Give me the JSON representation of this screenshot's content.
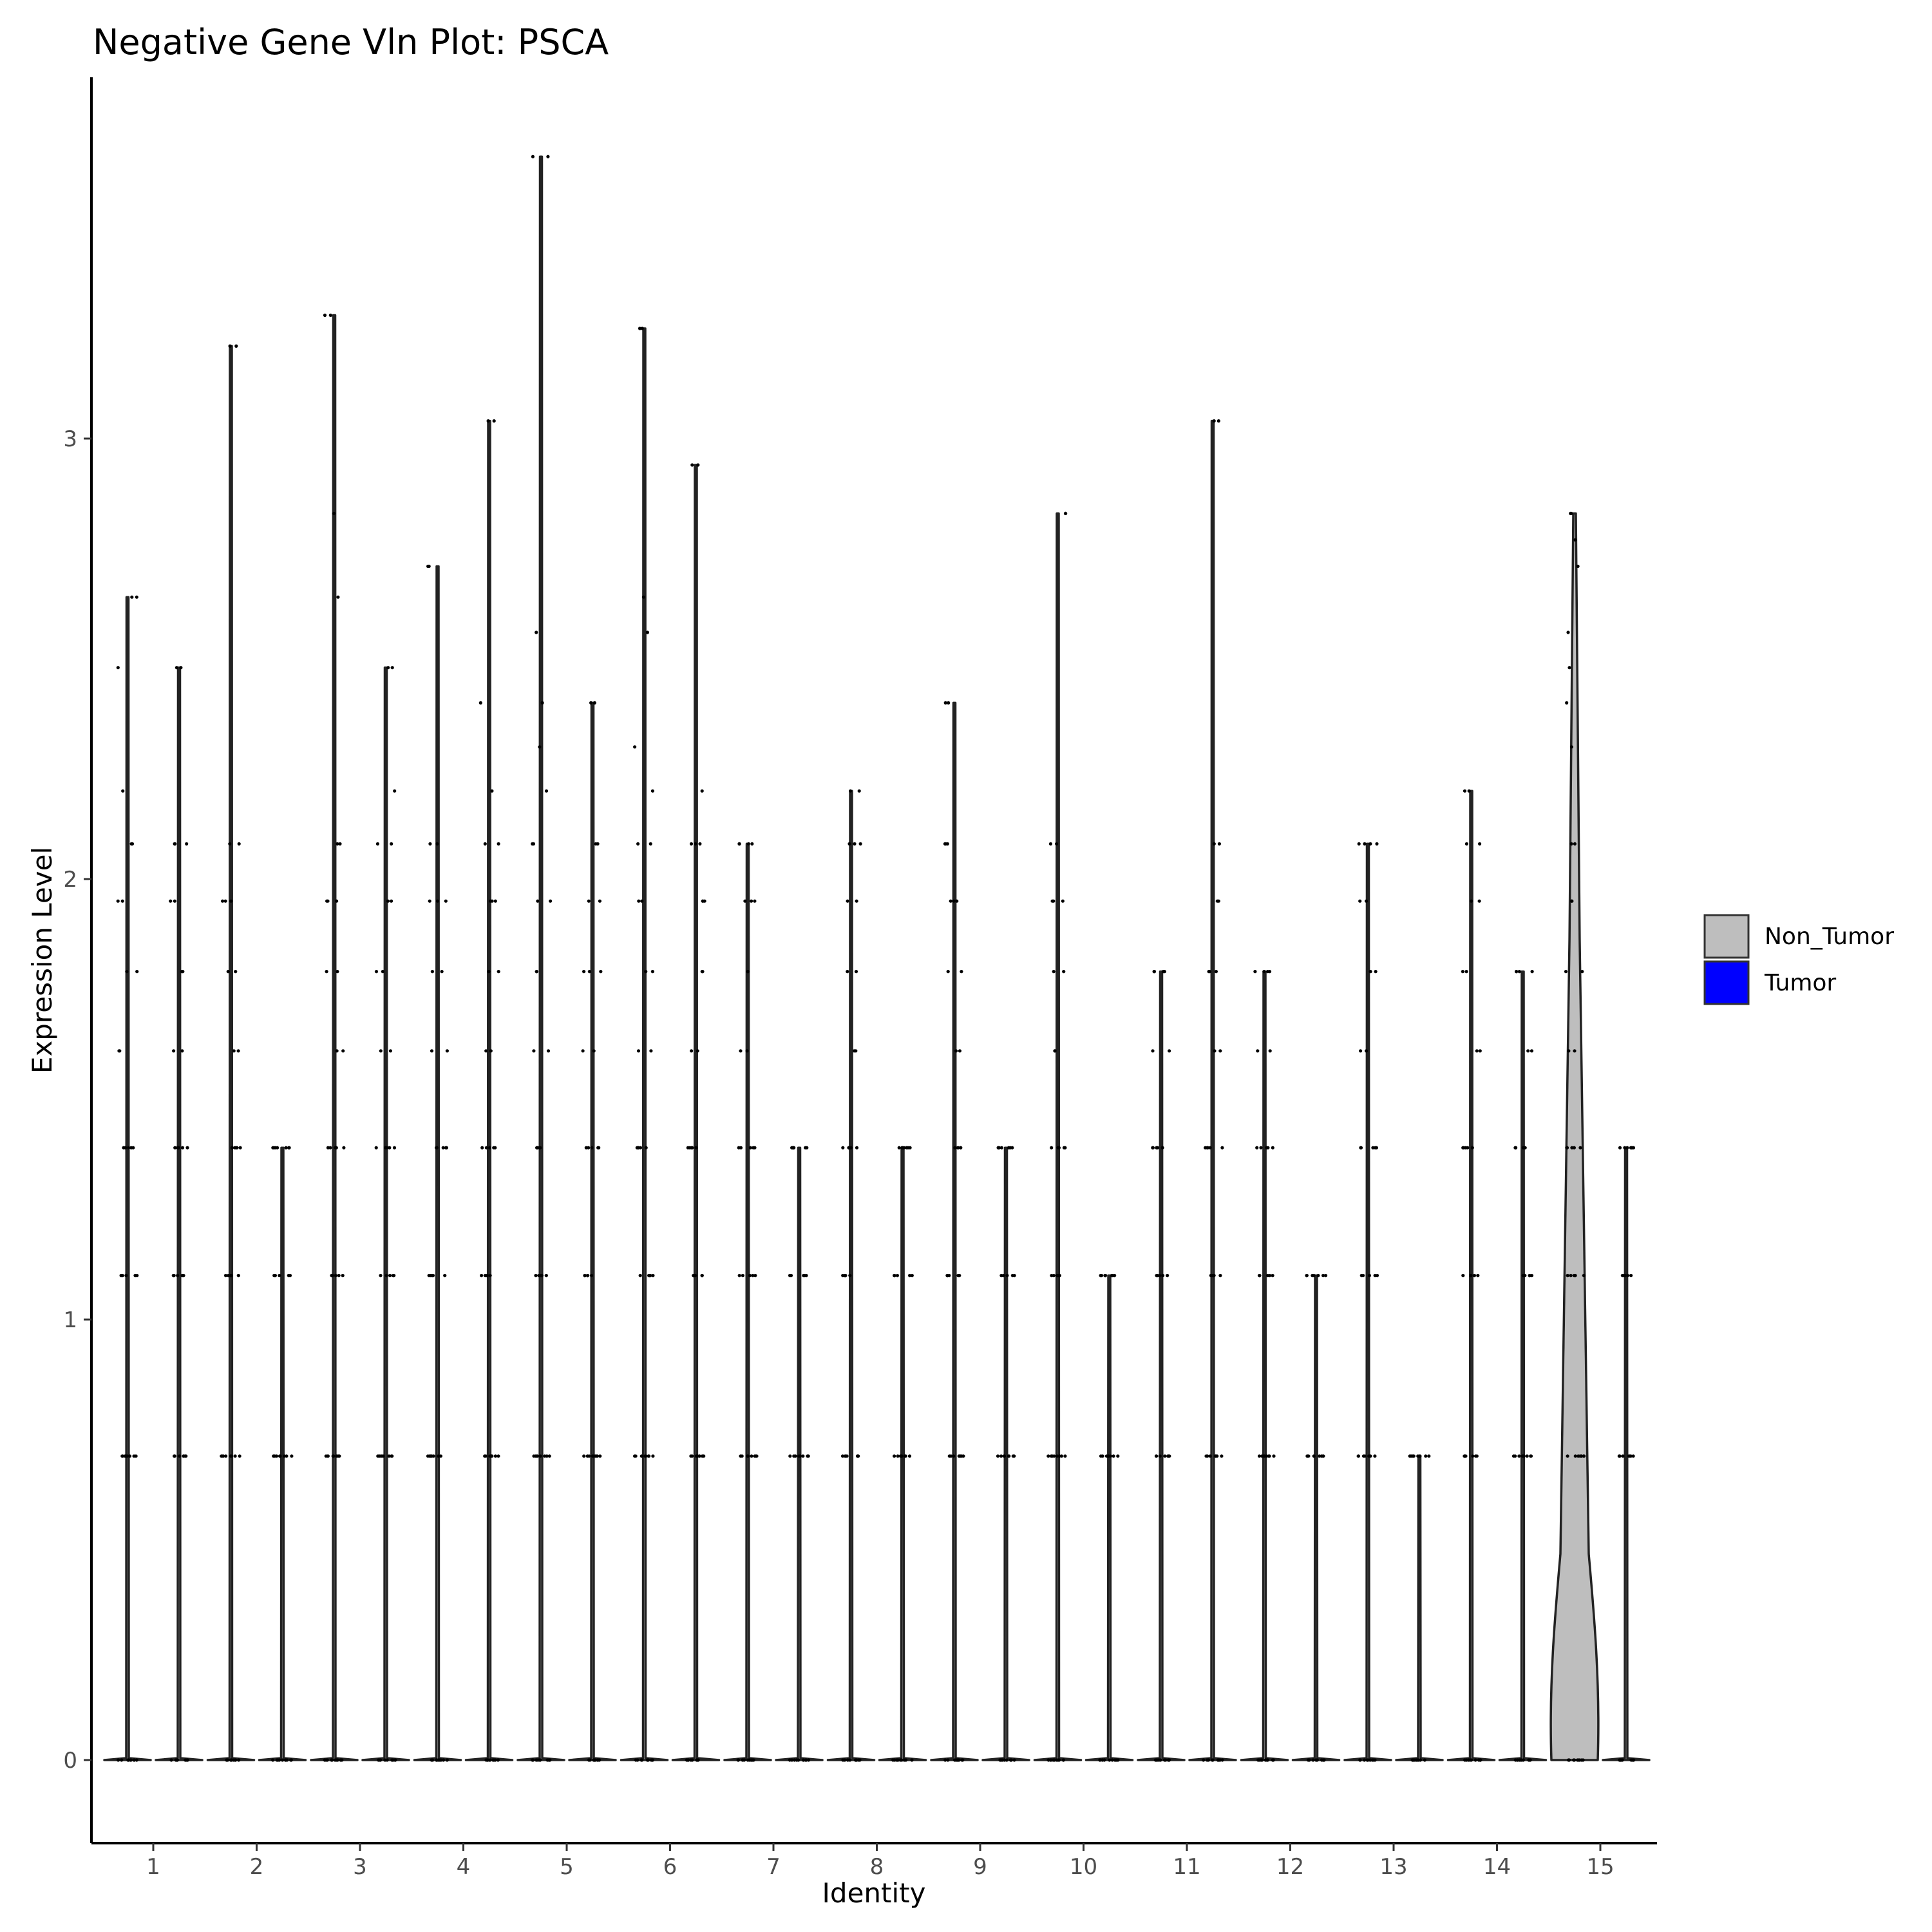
{
  "chart_data": {
    "type": "violin",
    "title": "Negative Gene Vln Plot: PSCA",
    "xlabel": "Identity",
    "ylabel": "Expression Level",
    "categories": [
      "1",
      "2",
      "3",
      "4",
      "5",
      "6",
      "7",
      "8",
      "9",
      "10",
      "11",
      "12",
      "13",
      "14",
      "15"
    ],
    "ylim": [
      -0.18,
      3.7
    ],
    "yticks": [
      0,
      1,
      2,
      3
    ],
    "grid": false,
    "legend": {
      "placement": "right",
      "entries": [
        {
          "name": "Non_Tumor",
          "color": "#BEBEBE"
        },
        {
          "name": "Tumor",
          "color": "#0000FF"
        }
      ]
    },
    "levels": [
      0.69,
      1.1,
      1.39,
      1.61,
      1.79,
      1.95,
      2.08
    ],
    "series": [
      {
        "name": "Non_Tumor",
        "color": "#BEBEBE",
        "max": [
          2.64,
          3.21,
          3.28,
          2.71,
          3.64,
          3.25,
          2.08,
          2.2,
          2.4,
          2.83,
          1.79,
          1.79,
          2.08,
          2.2,
          2.83
        ],
        "extra_points": [
          [
            2.48,
            2.2
          ],
          [
            1.95
          ],
          [
            2.83,
            2.64,
            1.95
          ],
          [
            1.95
          ],
          [
            2.56,
            2.4,
            2.3,
            2.2
          ],
          [
            2.64,
            2.56,
            2.3,
            2.2
          ],
          [
            1.95
          ],
          [
            2.08
          ],
          [
            2.08,
            1.95
          ],
          [
            1.95
          ],
          [],
          [],
          [],
          [],
          [
            2.77,
            2.71,
            2.56,
            2.48,
            2.4,
            2.3
          ]
        ]
      },
      {
        "name": "Tumor",
        "color": "#0000FF",
        "max": [
          2.48,
          1.39,
          2.48,
          3.04,
          2.4,
          2.94,
          1.39,
          1.39,
          1.39,
          1.1,
          3.04,
          1.1,
          0.69,
          1.79,
          1.39
        ],
        "extra_points": [
          [
            2.08
          ],
          [],
          [
            2.2
          ],
          [
            2.4,
            2.2,
            1.95
          ],
          [
            1.79
          ],
          [
            2.2,
            2.08,
            1.95
          ],
          [],
          [],
          [],
          [],
          [
            1.79
          ],
          [],
          [],
          [],
          []
        ]
      }
    ]
  }
}
